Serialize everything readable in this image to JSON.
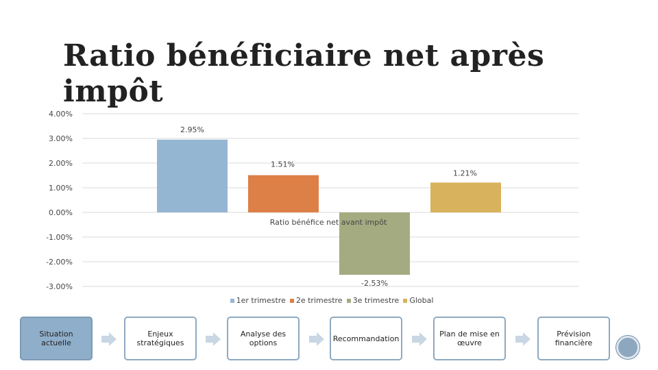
{
  "title": "Ratio bénéficiaire net après impôt",
  "chart_data": {
    "type": "bar",
    "title": "Ratio bénéficiaire net après impôt",
    "categories": [
      "Ratio bénéfice net avant impôt"
    ],
    "series": [
      {
        "name": "1er trimestre",
        "values": [
          0.0295
        ],
        "label": "2.95%",
        "color": "#94b6d2"
      },
      {
        "name": "2e trimestre",
        "values": [
          0.0151
        ],
        "label": "1.51%",
        "color": "#dd8047"
      },
      {
        "name": "3e trimestre",
        "values": [
          -0.0253
        ],
        "label": "-2.53%",
        "color": "#a5ab81"
      },
      {
        "name": "Global",
        "values": [
          0.0121
        ],
        "label": "1.21%",
        "color": "#d8b25c"
      }
    ],
    "ylim": [
      -0.03,
      0.04
    ],
    "yticks": [
      "4.00%",
      "3.00%",
      "2.00%",
      "1.00%",
      "0.00%",
      "-1.00%",
      "-2.00%",
      "-3.00%"
    ],
    "ytick_values": [
      0.04,
      0.03,
      0.02,
      0.01,
      0,
      -0.01,
      -0.02,
      -0.03
    ],
    "grid": true,
    "legend": "bottom"
  },
  "process": {
    "steps": [
      {
        "label": "Situation actuelle",
        "active": true
      },
      {
        "label": "Enjeux stratégiques",
        "active": false
      },
      {
        "label": "Analyse des options",
        "active": false
      },
      {
        "label": "Recommandation",
        "active": false
      },
      {
        "label": "Plan de mise en œuvre",
        "active": false
      },
      {
        "label": "Prévision financière",
        "active": false
      }
    ]
  }
}
